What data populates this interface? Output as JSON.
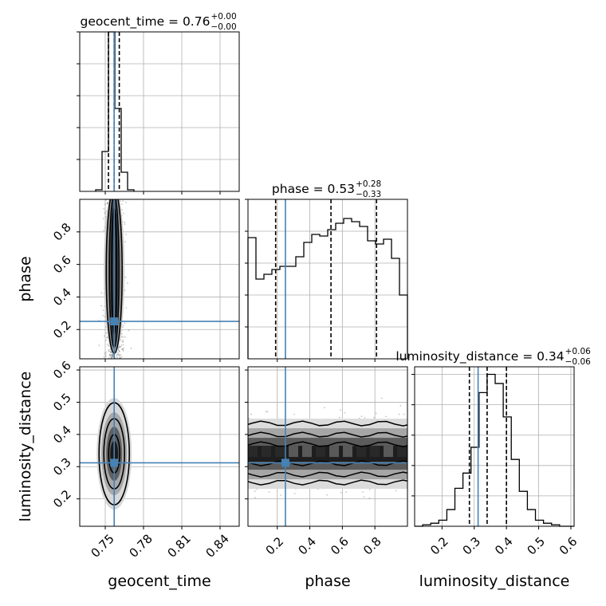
{
  "chart_data": {
    "type": "corner",
    "parameters": [
      {
        "name": "geocent_time",
        "xlabel": "geocent_time",
        "ylabel": "",
        "title_prefix": "geocent_time = 0.76",
        "title_sup": "+0.00",
        "title_sub": "−0.00",
        "range": [
          0.73,
          0.855
        ],
        "ticks": [
          0.75,
          0.78,
          0.81,
          0.84
        ],
        "tick_labels": [
          "0.75",
          "0.78",
          "0.81",
          "0.84"
        ],
        "quantiles": [
          0.7525,
          0.757,
          0.761
        ],
        "truth": 0.757
      },
      {
        "name": "phase",
        "xlabel": "phase",
        "ylabel": "phase",
        "title_prefix": "phase = 0.53",
        "title_sup": "+0.28",
        "title_sub": "−0.33",
        "range": [
          0.02,
          1.0
        ],
        "ticks": [
          0.2,
          0.4,
          0.6,
          0.8
        ],
        "tick_labels": [
          "0.2",
          "0.4",
          "0.6",
          "0.8"
        ],
        "quantiles": [
          0.19,
          0.53,
          0.81
        ],
        "truth": 0.25
      },
      {
        "name": "luminosity_distance",
        "xlabel": "luminosity_distance",
        "ylabel": "luminosity_distance",
        "title_prefix": "luminosity_distance = 0.34",
        "title_sup": "+0.06",
        "title_sub": "−0.06",
        "range": [
          0.115,
          0.61
        ],
        "ticks": [
          0.2,
          0.3,
          0.4,
          0.5,
          0.6
        ],
        "tick_labels": [
          "0.2",
          "0.3",
          "0.4",
          "0.5",
          "0.6"
        ],
        "quantiles": [
          0.285,
          0.34,
          0.4
        ],
        "truth": 0.312
      }
    ],
    "histograms": [
      {
        "parameter": "geocent_time",
        "bins": [
          0.7425,
          0.7475,
          0.7525,
          0.7575,
          0.7625,
          0.7675,
          0.7725
        ],
        "counts": [
          0.01,
          0.25,
          1.0,
          0.52,
          0.12,
          0.01
        ],
        "ymax": 1.0
      },
      {
        "parameter": "phase",
        "bins": [
          0.02,
          0.069,
          0.118,
          0.167,
          0.216,
          0.265,
          0.314,
          0.363,
          0.412,
          0.461,
          0.51,
          0.559,
          0.608,
          0.657,
          0.706,
          0.755,
          0.804,
          0.853,
          0.902,
          0.951,
          1.0
        ],
        "counts": [
          0.76,
          0.5,
          0.53,
          0.56,
          0.58,
          0.58,
          0.64,
          0.73,
          0.78,
          0.77,
          0.81,
          0.85,
          0.88,
          0.86,
          0.83,
          0.74,
          0.72,
          0.75,
          0.63,
          0.4
        ],
        "ymax": 1.0
      },
      {
        "parameter": "luminosity_distance",
        "bins": [
          0.115,
          0.14,
          0.165,
          0.19,
          0.215,
          0.24,
          0.265,
          0.29,
          0.315,
          0.34,
          0.365,
          0.39,
          0.415,
          0.44,
          0.465,
          0.49,
          0.515,
          0.54,
          0.565,
          0.59,
          0.61
        ],
        "counts": [
          0.0,
          0.01,
          0.02,
          0.04,
          0.11,
          0.25,
          0.35,
          0.52,
          0.88,
          1.0,
          0.94,
          0.72,
          0.44,
          0.23,
          0.11,
          0.04,
          0.02,
          0.01,
          0.0,
          0.0
        ],
        "ymax": 1.05
      }
    ],
    "joint_panels": [
      {
        "x": "geocent_time",
        "y": "phase",
        "center": [
          0.757,
          0.55
        ],
        "spread": [
          0.0035,
          0.24
        ],
        "shape": "vertical-band"
      },
      {
        "x": "geocent_time",
        "y": "luminosity_distance",
        "center": [
          0.757,
          0.34
        ],
        "spread": [
          0.003,
          0.05
        ],
        "shape": "ellipse"
      },
      {
        "x": "phase",
        "y": "luminosity_distance",
        "center": [
          0.6,
          0.34
        ],
        "spread": [
          0.26,
          0.045
        ],
        "shape": "horizontal-band"
      }
    ],
    "grid": true,
    "colors": {
      "truth": "#4682b4",
      "histogram": "#000000",
      "quantile": "#000000",
      "scatter": "#555555"
    }
  }
}
